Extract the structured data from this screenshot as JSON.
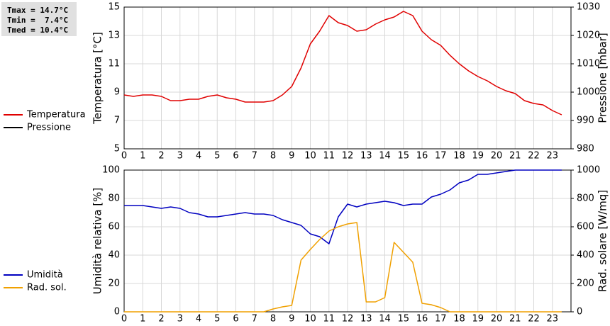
{
  "stats": [
    "Tmax = 14.7°C",
    "Tmin =  7.4°C",
    "Tmed = 10.4°C"
  ],
  "chart_data": [
    {
      "type": "line",
      "y_label": "Temperatura [°C]",
      "y2_label": "Pressione [mbar]",
      "x": [
        0,
        0.5,
        1,
        1.5,
        2,
        2.5,
        3,
        3.5,
        4,
        4.5,
        5,
        5.5,
        6,
        6.5,
        7,
        7.5,
        8,
        8.5,
        9,
        9.5,
        10,
        10.5,
        11,
        11.5,
        12,
        12.5,
        13,
        13.5,
        14,
        14.5,
        15,
        15.5,
        16,
        16.5,
        17,
        17.5,
        18,
        18.5,
        19,
        19.5,
        20,
        20.5,
        21,
        21.5,
        22,
        22.5,
        23,
        23.5
      ],
      "xlim": [
        0,
        24
      ],
      "xticks": [
        0,
        1,
        2,
        3,
        4,
        5,
        6,
        7,
        8,
        9,
        10,
        11,
        12,
        13,
        14,
        15,
        16,
        17,
        18,
        19,
        20,
        21,
        22,
        23
      ],
      "ylim": [
        5,
        15
      ],
      "yticks": [
        5,
        7,
        9,
        11,
        13,
        15
      ],
      "y2lim": [
        980,
        1030
      ],
      "y2ticks": [
        980,
        990,
        1000,
        1010,
        1020,
        1030
      ],
      "grid": true,
      "series": [
        {
          "name": "Temperatura",
          "color": "#e00000",
          "values": [
            8.8,
            8.7,
            8.8,
            8.8,
            8.7,
            8.4,
            8.4,
            8.5,
            8.5,
            8.7,
            8.8,
            8.6,
            8.5,
            8.3,
            8.3,
            8.3,
            8.4,
            8.8,
            9.4,
            10.7,
            12.4,
            13.3,
            14.4,
            13.9,
            13.7,
            13.3,
            13.4,
            13.8,
            14.1,
            14.3,
            14.7,
            14.4,
            13.3,
            12.7,
            12.3,
            11.6,
            11.0,
            10.5,
            10.1,
            9.8,
            9.4,
            9.1,
            8.9,
            8.4,
            8.2,
            8.1,
            7.7,
            7.4
          ]
        },
        {
          "name": "Pressione",
          "color": "#000000",
          "axis": "y2",
          "values": [
            null,
            null,
            null,
            null,
            null,
            null,
            null,
            null,
            null,
            null,
            null,
            null,
            null,
            null,
            null,
            null,
            null,
            null,
            null,
            null,
            null,
            null,
            null,
            null,
            null,
            null,
            null,
            null,
            null,
            null,
            null,
            null,
            null,
            null,
            null,
            null,
            null,
            null,
            null,
            null,
            null,
            null,
            null,
            null,
            null,
            null,
            null,
            null
          ]
        }
      ]
    },
    {
      "type": "line",
      "y_label": "Umidità relativa [%]",
      "y2_label": "Rad. solare [W/mq]",
      "x": [
        0,
        0.5,
        1,
        1.5,
        2,
        2.5,
        3,
        3.5,
        4,
        4.5,
        5,
        5.5,
        6,
        6.5,
        7,
        7.5,
        8,
        8.5,
        9,
        9.5,
        10,
        10.5,
        11,
        11.5,
        12,
        12.5,
        13,
        13.5,
        14,
        14.5,
        15,
        15.5,
        16,
        16.5,
        17,
        17.5,
        18,
        18.5,
        19,
        19.5,
        20,
        20.5,
        21,
        21.5,
        22,
        22.5,
        23,
        23.5
      ],
      "xlim": [
        0,
        24
      ],
      "xticks": [
        0,
        1,
        2,
        3,
        4,
        5,
        6,
        7,
        8,
        9,
        10,
        11,
        12,
        13,
        14,
        15,
        16,
        17,
        18,
        19,
        20,
        21,
        22,
        23
      ],
      "ylim": [
        0,
        100
      ],
      "yticks": [
        0,
        20,
        40,
        60,
        80,
        100
      ],
      "y2lim": [
        0,
        1000
      ],
      "y2ticks": [
        0,
        200,
        400,
        600,
        800,
        1000
      ],
      "grid": true,
      "series": [
        {
          "name": "Umidità",
          "color": "#0000c0",
          "values": [
            75,
            75,
            75,
            74,
            73,
            74,
            73,
            70,
            69,
            67,
            67,
            68,
            69,
            70,
            69,
            69,
            68,
            65,
            63,
            61,
            55,
            53,
            48,
            67,
            76,
            74,
            76,
            77,
            78,
            77,
            75,
            76,
            76,
            81,
            83,
            86,
            91,
            93,
            97,
            97,
            98,
            99,
            100,
            100,
            100,
            100,
            100,
            100
          ]
        },
        {
          "name": "Rad. sol.",
          "color": "#f0a000",
          "axis": "y2",
          "values": [
            0,
            0,
            0,
            0,
            0,
            0,
            0,
            0,
            0,
            0,
            0,
            0,
            0,
            0,
            0,
            0,
            20,
            35,
            45,
            365,
            440,
            510,
            570,
            600,
            620,
            630,
            70,
            70,
            100,
            490,
            420,
            350,
            60,
            50,
            30,
            0,
            0,
            0,
            0,
            0,
            0,
            0,
            0,
            0,
            0,
            0,
            0,
            0
          ]
        }
      ]
    }
  ]
}
